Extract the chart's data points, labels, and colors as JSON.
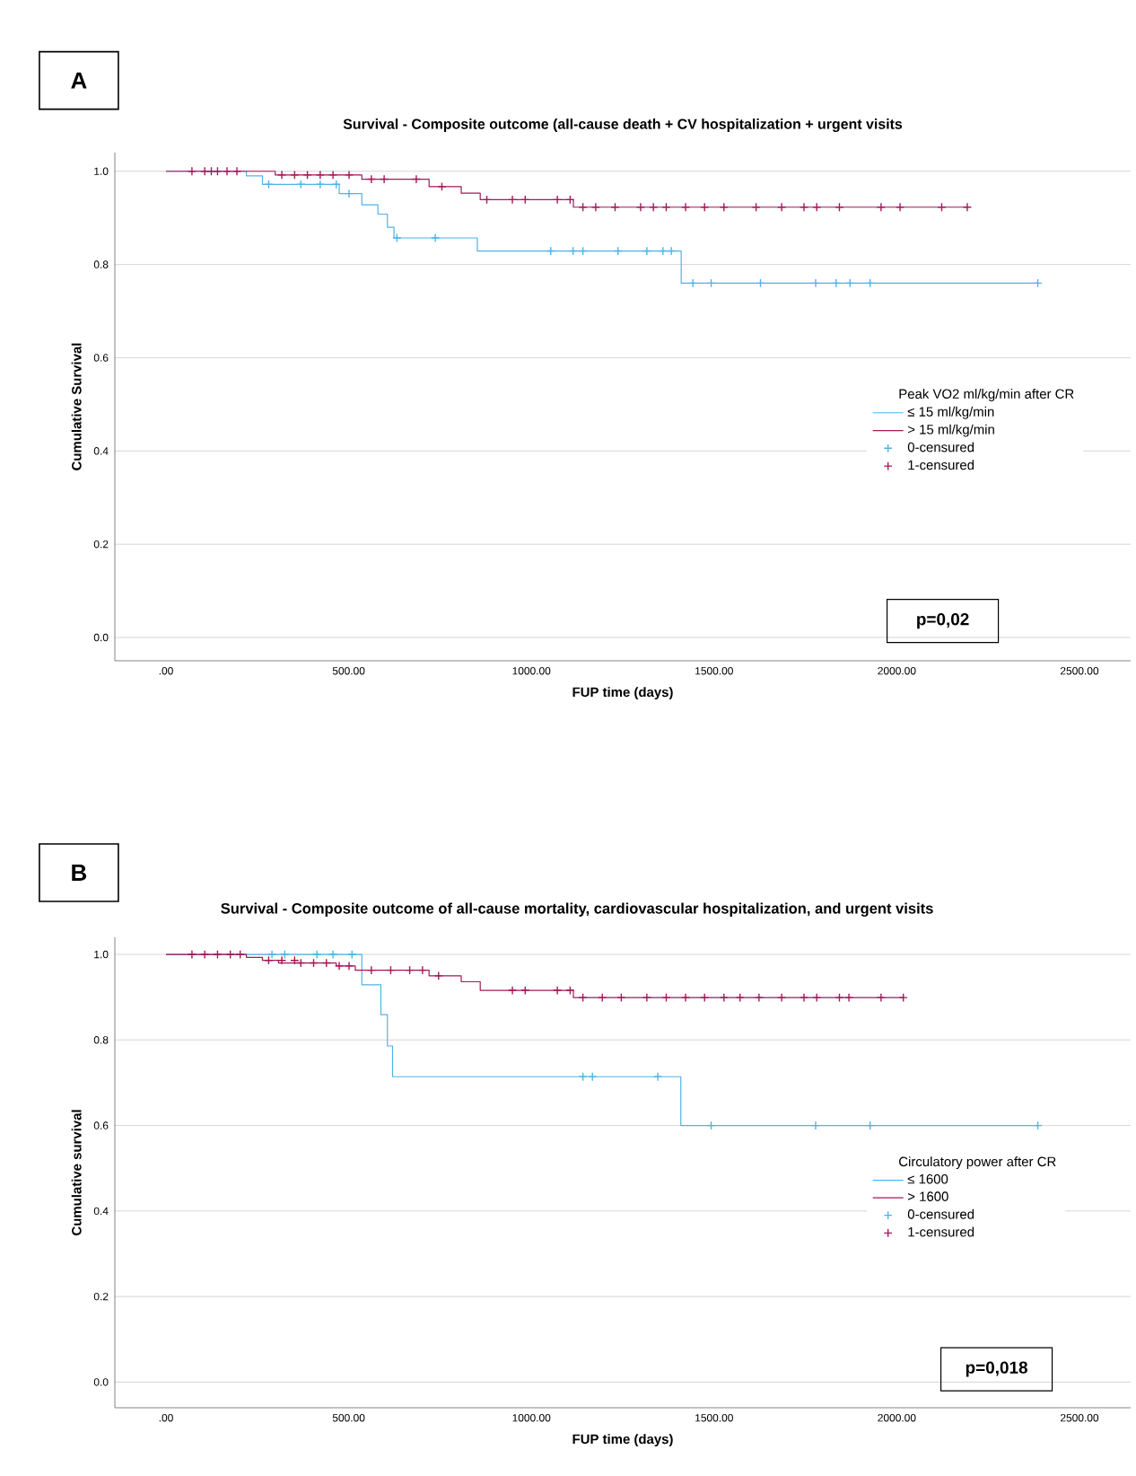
{
  "chart_data": [
    {
      "type": "step",
      "title": "Survival - Composite outcome (all-cause death + CV hospitalization + urgent visits",
      "xlabel": "FUP time (days)",
      "ylabel": "Cumulative Survival",
      "legend_title": "Peak VO2 ml/kg/min after CR",
      "annotations": [
        "A",
        "p=0,02"
      ],
      "xlim": [
        -140,
        2640
      ],
      "ylim": [
        -0.05,
        1.04
      ],
      "xticks": [
        {
          "value": 0,
          "label": ".00"
        },
        {
          "value": 500,
          "label": "500.00"
        },
        {
          "value": 1000,
          "label": "1000.00"
        },
        {
          "value": 1500,
          "label": "1500.00"
        },
        {
          "value": 2000,
          "label": "2000.00"
        },
        {
          "value": 2500,
          "label": "2500.00"
        }
      ],
      "yticks": [
        {
          "value": 0,
          "label": "0.0"
        },
        {
          "value": 0.2,
          "label": "0.2"
        },
        {
          "value": 0.4,
          "label": "0.4"
        },
        {
          "value": 0.6,
          "label": "0.6"
        },
        {
          "value": 0.8,
          "label": "0.8"
        },
        {
          "value": 1,
          "label": "1.0"
        }
      ],
      "grid": "y",
      "legend": "right",
      "series": [
        {
          "name": "≤ 15 ml/kg/min",
          "type": "step",
          "color": "#4fb4e6",
          "x": [
            0,
            220,
            264,
            474,
            536,
            580,
            606,
            624,
            852,
            1410,
            2386
          ],
          "values": [
            1.0,
            0.99,
            0.972,
            0.952,
            0.928,
            0.908,
            0.88,
            0.857,
            0.829,
            0.76,
            0.76
          ]
        },
        {
          "name": "> 15 ml/kg/min",
          "color": "#a3195b",
          "x": [
            0,
            299,
            536,
            720,
            808,
            860,
            1115,
            2193
          ],
          "values": [
            1.0,
            0.992,
            0.983,
            0.967,
            0.953,
            0.939,
            0.923,
            0.923
          ]
        },
        {
          "name": "0-censured",
          "type": "scatter",
          "marker": "cross",
          "color": "#4fb4e6",
          "x": [
            281,
            369,
            422,
            466,
            501,
            632,
            737,
            1053,
            1114,
            1141,
            1237,
            1316,
            1360,
            1383,
            1442,
            1492,
            1627,
            1778,
            1834,
            1872,
            1927,
            2386
          ],
          "values": [
            0.972,
            0.972,
            0.972,
            0.972,
            0.952,
            0.857,
            0.857,
            0.829,
            0.829,
            0.829,
            0.829,
            0.829,
            0.829,
            0.829,
            0.76,
            0.76,
            0.76,
            0.76,
            0.76,
            0.76,
            0.76,
            0.76
          ]
        },
        {
          "name": "1-censured",
          "type": "scatter",
          "marker": "cross",
          "color": "#a3195b",
          "x": [
            71,
            106,
            124,
            141,
            167,
            194,
            317,
            352,
            387,
            422,
            457,
            501,
            562,
            597,
            685,
            755,
            878,
            948,
            983,
            1071,
            1106,
            1141,
            1176,
            1229,
            1299,
            1334,
            1369,
            1422,
            1474,
            1527,
            1615,
            1685,
            1746,
            1781,
            1843,
            1957,
            2009,
            2123,
            2193
          ],
          "values": [
            1.0,
            1.0,
            1.0,
            1.0,
            1.0,
            1.0,
            0.992,
            0.992,
            0.992,
            0.992,
            0.992,
            0.992,
            0.983,
            0.983,
            0.983,
            0.967,
            0.939,
            0.939,
            0.939,
            0.939,
            0.939,
            0.923,
            0.923,
            0.923,
            0.923,
            0.923,
            0.923,
            0.923,
            0.923,
            0.923,
            0.923,
            0.923,
            0.923,
            0.923,
            0.923,
            0.923,
            0.923,
            0.923,
            0.923
          ]
        }
      ]
    },
    {
      "type": "step",
      "title": "Survival - Composite outcome of all-cause mortality, cardiovascular hospitalization, and urgent visits",
      "xlabel": "FUP time (days)",
      "ylabel": "Cumulative survival",
      "legend_title": "Circulatory power after CR",
      "annotations": [
        "B",
        "p=0,018"
      ],
      "xlim": [
        -140,
        2640
      ],
      "ylim": [
        -0.06,
        1.04
      ],
      "xticks": [
        {
          "value": 0,
          "label": ".00"
        },
        {
          "value": 500,
          "label": "500.00"
        },
        {
          "value": 1000,
          "label": "1000.00"
        },
        {
          "value": 1500,
          "label": "1500.00"
        },
        {
          "value": 2000,
          "label": "2000.00"
        },
        {
          "value": 2500,
          "label": "2500.00"
        }
      ],
      "yticks": [
        {
          "value": 0,
          "label": "0.0"
        },
        {
          "value": 0.2,
          "label": "0.2"
        },
        {
          "value": 0.4,
          "label": "0.4"
        },
        {
          "value": 0.6,
          "label": "0.6"
        },
        {
          "value": 0.8,
          "label": "0.8"
        },
        {
          "value": 1,
          "label": "1.0"
        }
      ],
      "grid": "y",
      "legend": "right",
      "series": [
        {
          "name": "≤ 1600",
          "type": "step",
          "color": "#4fb4e6",
          "x": [
            0,
            536,
            588,
            606,
            620,
            1409,
            2386
          ],
          "values": [
            1.0,
            0.929,
            0.859,
            0.786,
            0.714,
            0.6,
            0.6
          ]
        },
        {
          "name": "> 1600",
          "color": "#a3195b",
          "x": [
            0,
            220,
            264,
            308,
            466,
            518,
            720,
            808,
            860,
            1115,
            2018
          ],
          "values": [
            1.0,
            0.993,
            0.986,
            0.98,
            0.973,
            0.963,
            0.95,
            0.936,
            0.916,
            0.899,
            0.899
          ]
        },
        {
          "name": "0-censured",
          "type": "scatter",
          "marker": "cross",
          "color": "#4fb4e6",
          "x": [
            290,
            325,
            413,
            457,
            509,
            1141,
            1167,
            1346,
            1492,
            1778,
            1927,
            2386
          ],
          "values": [
            1.0,
            1.0,
            1.0,
            1.0,
            1.0,
            0.714,
            0.714,
            0.714,
            0.6,
            0.6,
            0.6,
            0.6
          ]
        },
        {
          "name": "1-censured",
          "type": "scatter",
          "marker": "cross",
          "color": "#a3195b",
          "x": [
            71,
            106,
            141,
            176,
            203,
            281,
            317,
            352,
            369,
            404,
            439,
            474,
            501,
            562,
            615,
            667,
            702,
            746,
            948,
            983,
            1071,
            1106,
            1141,
            1194,
            1246,
            1316,
            1369,
            1422,
            1474,
            1527,
            1571,
            1623,
            1685,
            1746,
            1781,
            1843,
            1869,
            1957,
            2018
          ],
          "values": [
            1.0,
            1.0,
            1.0,
            1.0,
            1.0,
            0.986,
            0.986,
            0.986,
            0.98,
            0.98,
            0.98,
            0.973,
            0.973,
            0.963,
            0.963,
            0.963,
            0.963,
            0.95,
            0.916,
            0.916,
            0.916,
            0.916,
            0.899,
            0.899,
            0.899,
            0.899,
            0.899,
            0.899,
            0.899,
            0.899,
            0.899,
            0.899,
            0.899,
            0.899,
            0.899,
            0.899,
            0.899,
            0.899,
            0.899
          ]
        }
      ]
    }
  ]
}
